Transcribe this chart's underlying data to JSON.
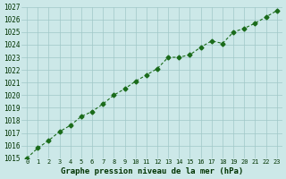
{
  "x": [
    0,
    1,
    2,
    3,
    4,
    5,
    6,
    7,
    8,
    9,
    10,
    11,
    12,
    13,
    14,
    15,
    16,
    17,
    18,
    19,
    20,
    21,
    22,
    23
  ],
  "y": [
    1015.0,
    1015.8,
    1016.4,
    1017.1,
    1017.6,
    1018.3,
    1018.7,
    1019.3,
    1020.0,
    1020.5,
    1021.1,
    1021.6,
    1022.1,
    1023.0,
    1023.0,
    1023.2,
    1023.8,
    1024.3,
    1024.1,
    1025.0,
    1025.3,
    1025.7,
    1026.2,
    1026.7
  ],
  "ylim_min": 1015,
  "ylim_max": 1027,
  "ytick_step": 1,
  "line_color": "#1a6b1a",
  "marker_color": "#1a6b1a",
  "bg_color": "#cce8e8",
  "grid_color": "#a0c8c8",
  "xlabel": "Graphe pression niveau de la mer (hPa)",
  "xlabel_color": "#003300",
  "tick_color": "#003300",
  "title_bg": "#3a8a3a",
  "fig_bg": "#cce8e8"
}
